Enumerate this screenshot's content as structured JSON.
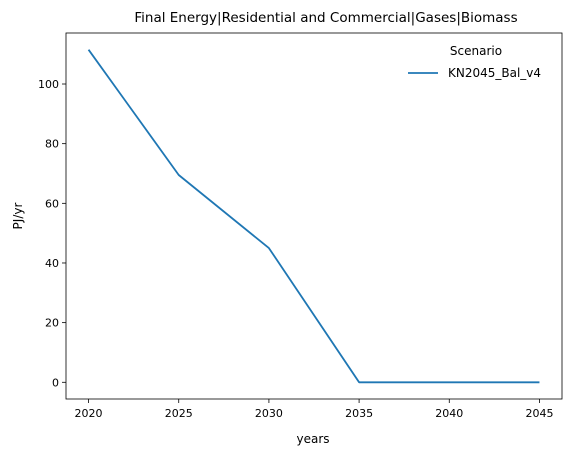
{
  "chart_data": {
    "type": "line",
    "title": "Final Energy|Residential and Commercial|Gases|Biomass",
    "xlabel": "years",
    "ylabel": "PJ/yr",
    "x": [
      2020,
      2025,
      2030,
      2035,
      2040,
      2045
    ],
    "xticks": [
      "2020",
      "2025",
      "2030",
      "2035",
      "2040",
      "2045"
    ],
    "yticks": [
      "0",
      "20",
      "40",
      "60",
      "80",
      "100"
    ],
    "xlim": [
      2018.75,
      2046.25
    ],
    "ylim": [
      -5.6,
      117.1
    ],
    "series": [
      {
        "name": "KN2045_Bal_v4",
        "values": [
          111.5,
          69.5,
          45.0,
          0.0,
          0.0,
          0.0
        ],
        "color": "#1f77b4"
      }
    ],
    "legend": {
      "title": "Scenario",
      "placement": "top-right"
    },
    "grid": false
  }
}
